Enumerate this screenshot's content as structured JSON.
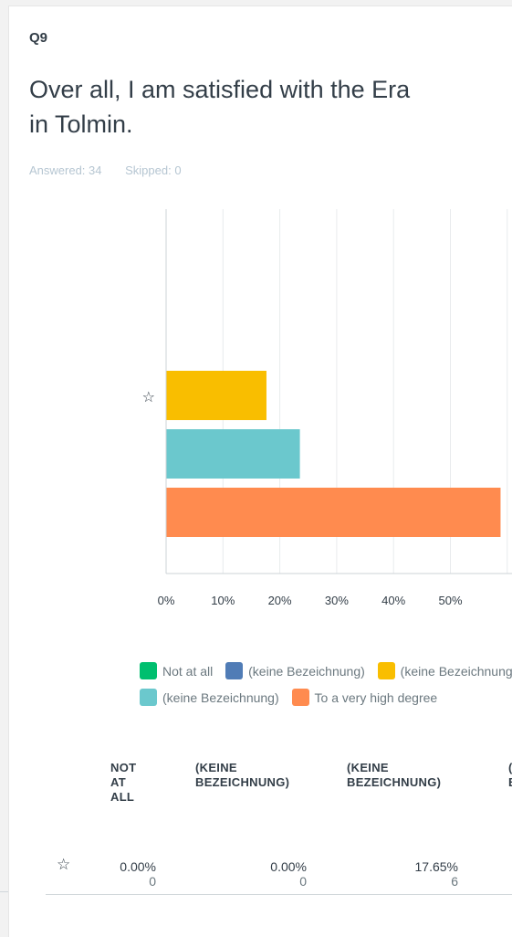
{
  "question": {
    "number": "Q9",
    "title_line1": "Over all, I am satisfied with the Era",
    "title_line2": "in Tolmin.",
    "answered": "Answered: 34",
    "skipped": "Skipped: 0"
  },
  "chart_data": {
    "type": "bar",
    "orientation": "horizontal",
    "categories": [
      "☆"
    ],
    "series": [
      {
        "name": "Not at all",
        "color": "#00bf6f",
        "values": [
          0
        ]
      },
      {
        "name": "(keine Bezeichnung)",
        "color": "#507cb6",
        "values": [
          0
        ]
      },
      {
        "name": "(keine Bezeichnung)",
        "color": "#f9be00",
        "values": [
          17.65
        ]
      },
      {
        "name": "(keine Bezeichnung)",
        "color": "#6bc8cd",
        "values": [
          23.53
        ]
      },
      {
        "name": "To a very high degree",
        "color": "#ff8b4f",
        "values": [
          58.82
        ]
      }
    ],
    "x_ticks": [
      "0%",
      "10%",
      "20%",
      "30%",
      "40%",
      "50%"
    ],
    "xlim": [
      0,
      60
    ],
    "grid": true,
    "legend_position": "bottom"
  },
  "legend": {
    "row1": [
      {
        "label": "Not at all",
        "color": "#00bf6f"
      },
      {
        "label": "(keine Bezeichnung)",
        "color": "#507cb6"
      },
      {
        "label": "(keine Bezeichnung)",
        "color": "#f9be00"
      }
    ],
    "row2": [
      {
        "label": "(keine Bezeichnung)",
        "color": "#6bc8cd"
      },
      {
        "label": "To a very high degree",
        "color": "#ff8b4f"
      }
    ]
  },
  "table": {
    "headers": [
      "NOT AT ALL",
      "(KEINE BEZEICHNUNG)",
      "(KEINE BEZEICHNUNG)",
      "(KEINE BEZEICHNUNG)"
    ],
    "header_lines": [
      [
        "NOT",
        "AT",
        "ALL"
      ],
      [
        "(KEINE",
        "BEZEICHNUNG)"
      ],
      [
        "(KEINE",
        "BEZEICHNUNG)"
      ],
      [
        "(",
        "B"
      ]
    ],
    "row": {
      "star": "☆",
      "percents": [
        "0.00%",
        "0.00%",
        "17.65%"
      ],
      "counts": [
        "0",
        "0",
        "6"
      ]
    }
  }
}
